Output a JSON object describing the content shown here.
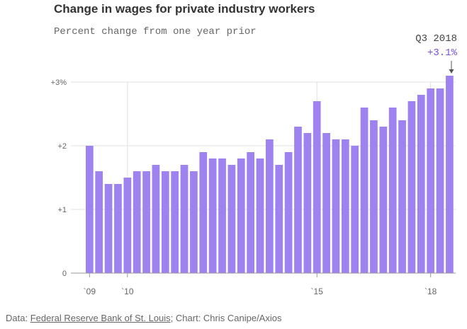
{
  "header": {
    "title": "Change in wages for private industry workers",
    "subtitle": "Percent change from one year prior"
  },
  "annotation": {
    "label": "Q3 2018",
    "value": "+3.1%"
  },
  "footer": {
    "prefix": "Data: ",
    "source_link": "Federal Reserve Bank of St. Louis",
    "suffix": "; Chart: Chris Canipe/Axios"
  },
  "colors": {
    "bar": "#9e82f0",
    "annotation_value": "#7a4fe0",
    "grid": "#e0e0e0",
    "axis": "#999999"
  },
  "chart_data": {
    "type": "bar",
    "title": "Change in wages for private industry workers",
    "subtitle": "Percent change from one year prior",
    "ylim": [
      0,
      3
    ],
    "yticks": [
      {
        "value": 0,
        "label": "0"
      },
      {
        "value": 1,
        "label": "+1"
      },
      {
        "value": 2,
        "label": "+2"
      },
      {
        "value": 3,
        "label": "+3%"
      }
    ],
    "xticks": [
      {
        "index": 0,
        "label": "`09"
      },
      {
        "index": 4,
        "label": "`10"
      },
      {
        "index": 24,
        "label": "`15"
      },
      {
        "index": 36,
        "label": "`18"
      }
    ],
    "grid_lines_at_index": [
      4,
      24,
      36
    ],
    "values": [
      2.0,
      1.6,
      1.4,
      1.4,
      1.5,
      1.6,
      1.6,
      1.7,
      1.6,
      1.6,
      1.7,
      1.6,
      1.9,
      1.8,
      1.8,
      1.7,
      1.8,
      1.9,
      1.8,
      2.1,
      1.7,
      1.9,
      2.3,
      2.2,
      2.7,
      2.2,
      2.1,
      2.1,
      2.0,
      2.6,
      2.4,
      2.3,
      2.6,
      2.4,
      2.7,
      2.8,
      2.9,
      2.9,
      3.1
    ],
    "highlight_index": 38
  }
}
